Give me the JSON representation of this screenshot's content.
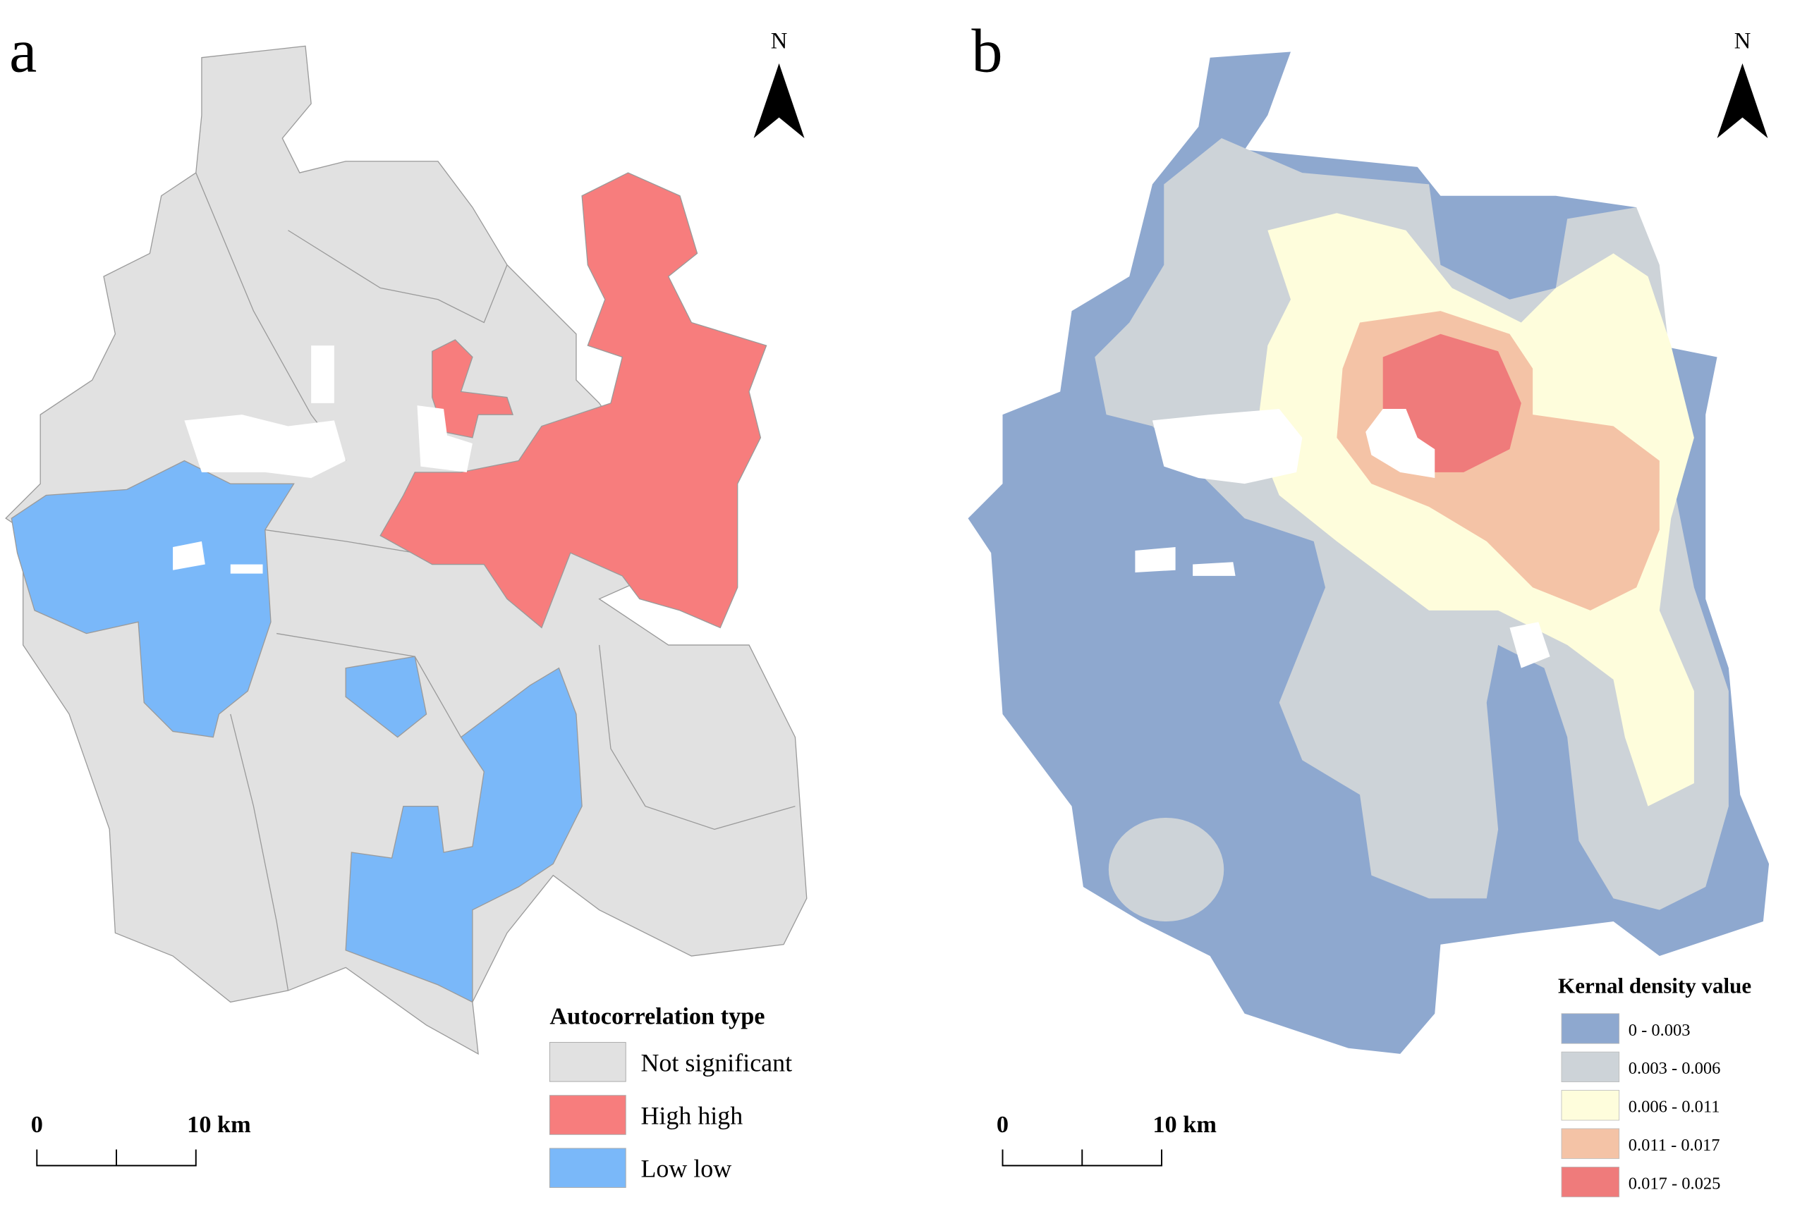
{
  "panels": [
    {
      "label": "a",
      "north": "N",
      "legend": {
        "title": "Autocorrelation type",
        "items": [
          {
            "label": "Not significant",
            "color": "#e1e1e1"
          },
          {
            "label": "High high",
            "color": "#f77d7d"
          },
          {
            "label": "Low low",
            "color": "#7ab8f9"
          }
        ]
      },
      "scale_bar": {
        "labels": [
          "0",
          "10 km"
        ]
      }
    },
    {
      "label": "b",
      "north": "N",
      "legend": {
        "title": "Kernal density value",
        "items": [
          {
            "label": "0 - 0.003",
            "color": "#8ea8cf"
          },
          {
            "label": "0.003 - 0.006",
            "color": "#cdd3d8"
          },
          {
            "label": "0.006 - 0.011",
            "color": "#fefddc"
          },
          {
            "label": "0.011 - 0.017",
            "color": "#f4c3a6"
          },
          {
            "label": "0.017 - 0.025",
            "color": "#ef7b7b"
          }
        ]
      },
      "scale_bar": {
        "labels": [
          "0",
          "10 km"
        ]
      }
    }
  ]
}
